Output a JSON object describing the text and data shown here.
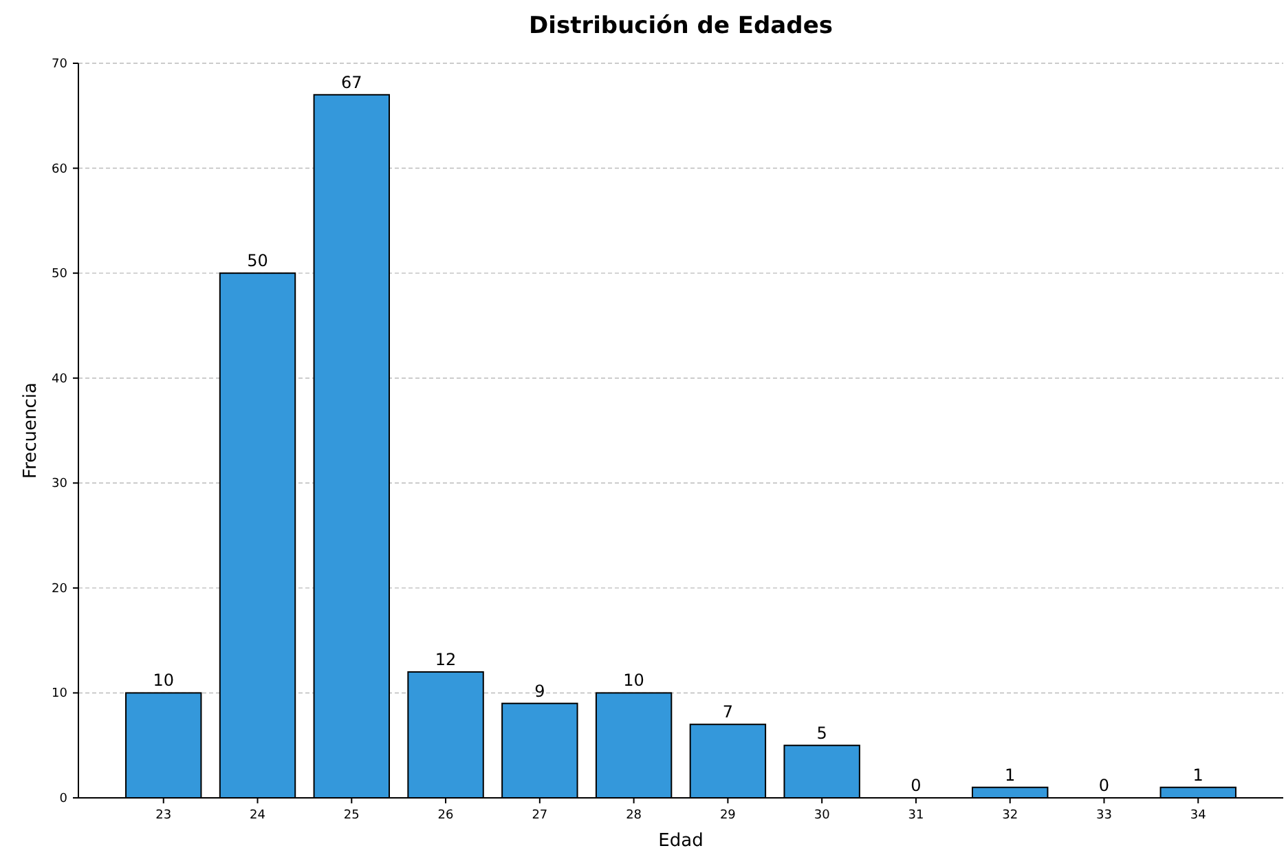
{
  "chart_data": {
    "type": "bar",
    "title": "Distribución de Edades",
    "xlabel": "Edad",
    "ylabel": "Frecuencia",
    "categories": [
      "23",
      "24",
      "25",
      "26",
      "27",
      "28",
      "29",
      "30",
      "31",
      "32",
      "33",
      "34"
    ],
    "values": [
      10,
      50,
      67,
      12,
      9,
      10,
      7,
      5,
      0,
      1,
      0,
      1
    ],
    "color": "#3498db",
    "ylim": [
      0,
      70
    ],
    "yticks": [
      0,
      10,
      20,
      30,
      40,
      50,
      60,
      70
    ],
    "grid": "y",
    "data_labels": true
  }
}
